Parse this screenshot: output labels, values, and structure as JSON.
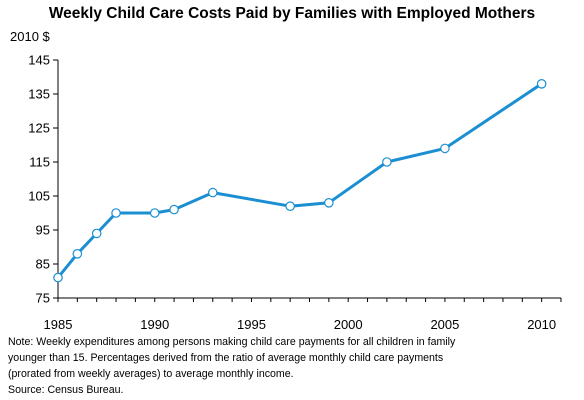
{
  "chart_data": {
    "type": "line",
    "title": "Weekly Child Care Costs Paid by Families with Employed Mothers",
    "unit_label": "2010 $",
    "xlabel": "",
    "ylabel": "",
    "xlim": [
      1985,
      2011
    ],
    "ylim": [
      75,
      145
    ],
    "x_ticks": [
      1985,
      1990,
      1995,
      2000,
      2005,
      2010
    ],
    "y_ticks": [
      75,
      85,
      95,
      105,
      115,
      125,
      135,
      145
    ],
    "grid": false,
    "legend": "none",
    "series": [
      {
        "color": "#1b8fd2",
        "x": [
          1985,
          1986,
          1987,
          1988,
          1990,
          1991,
          1993,
          1997,
          1999,
          2002,
          2005,
          2010
        ],
        "y": [
          81,
          88,
          94,
          100,
          100,
          101,
          106,
          102,
          103,
          115,
          119,
          138
        ]
      }
    ],
    "notes": [
      "Note: Weekly expenditures among persons making child care payments for all children in family",
      "younger than 15. Percentages derived from the ratio of average monthly child care payments",
      "(prorated from weekly averages) to average monthly income.",
      "Source: Census Bureau."
    ]
  }
}
